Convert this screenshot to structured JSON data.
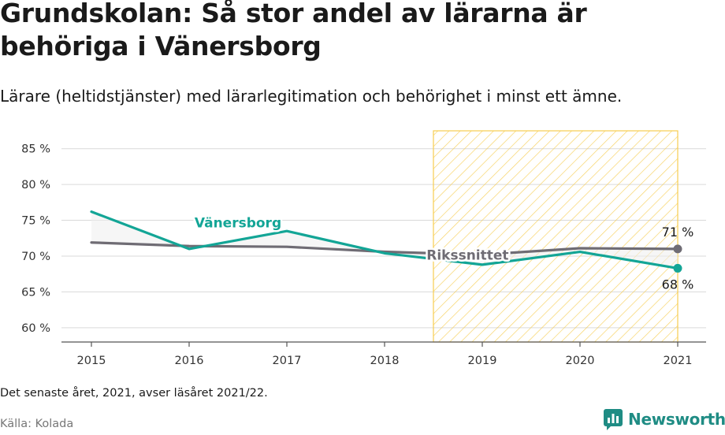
{
  "title": "Grundskolan: Så stor andel av lärarna är behöriga i Vänersborg",
  "subtitle": "Lärare (heltidstjänster) med lärarlegitimation och behörighet i minst ett ämne.",
  "note": "Det senaste året, 2021, avser läsåret 2021/22.",
  "source": "Källa: Kolada",
  "brand": "Newsworthy",
  "colors": {
    "vanersborg": "#13a596",
    "riket": "#6f6c74",
    "highlight": "#f7cd4f"
  },
  "chart_data": {
    "type": "line",
    "x": [
      2015,
      2016,
      2017,
      2018,
      2019,
      2020,
      2021
    ],
    "series": [
      {
        "name": "Vänersborg",
        "values": [
          76.2,
          71.0,
          73.5,
          70.4,
          68.8,
          70.6,
          68.3
        ],
        "end_label": "68 %"
      },
      {
        "name": "Rikssnittet",
        "values": [
          71.9,
          71.4,
          71.3,
          70.6,
          70.2,
          71.1,
          71.0
        ],
        "end_label": "71 %"
      }
    ],
    "y_ticks": [
      "60 %",
      "65 %",
      "70 %",
      "75 %",
      "80 %",
      "85 %"
    ],
    "y_tick_values": [
      60,
      65,
      70,
      75,
      80,
      85
    ],
    "ylim": [
      58,
      87.5
    ],
    "highlight_range": [
      2018.5,
      2021
    ],
    "grid": true,
    "legend": "inline labels"
  }
}
